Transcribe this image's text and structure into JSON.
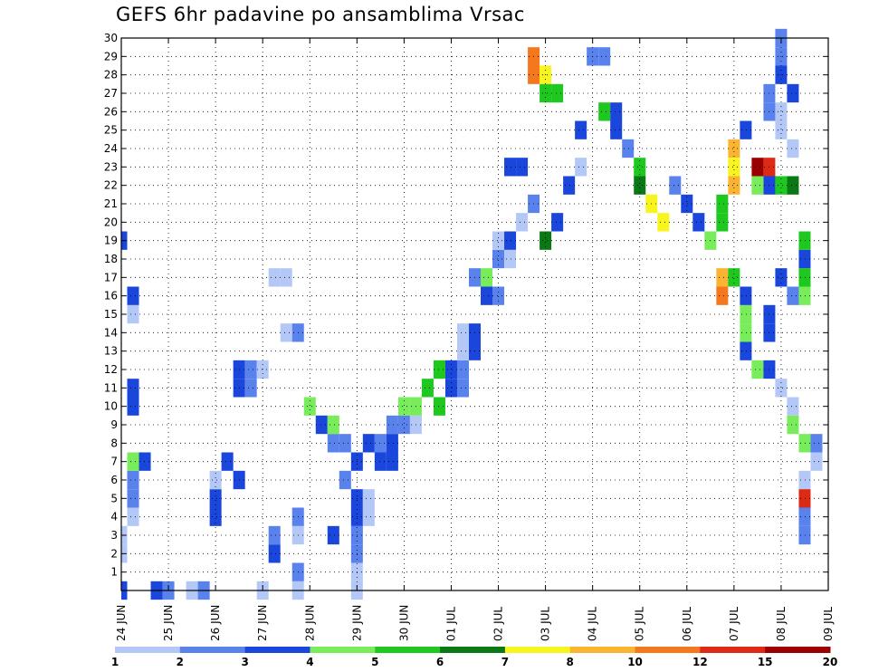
{
  "chart_data": {
    "type": "heatmap",
    "title": "GEFS 6hr padavine po ansamblima Vrsac",
    "xlabel": "",
    "ylabel": "",
    "x_tick_labels": [
      "24 JUN",
      "25 JUN",
      "26 JUN",
      "27 JUN",
      "28 JUN",
      "29 JUN",
      "30 JUN",
      "01 JUL",
      "02 JUL",
      "03 JUL",
      "04 JUL",
      "05 JUL",
      "06 JUL",
      "07 JUL",
      "08 JUL",
      "09 JUL"
    ],
    "y_tick_labels": [
      "1",
      "2",
      "3",
      "4",
      "5",
      "6",
      "7",
      "8",
      "9",
      "10",
      "11",
      "12",
      "13",
      "14",
      "15",
      "16",
      "17",
      "18",
      "19",
      "20",
      "21",
      "22",
      "23",
      "24",
      "25",
      "26",
      "27",
      "28",
      "29",
      "30"
    ],
    "xlim_steps": [
      0,
      60
    ],
    "ylim_members": [
      0,
      30
    ],
    "grid": true,
    "colorbar": {
      "labels": [
        "1",
        "2",
        "3",
        "4",
        "5",
        "6",
        "7",
        "8",
        "10",
        "12",
        "15",
        "20"
      ],
      "colors": [
        "#b4c8f8",
        "#5a82ec",
        "#1a46dc",
        "#78ec5a",
        "#1ec81e",
        "#0a7814",
        "#f8f51e",
        "#fab432",
        "#f5781e",
        "#dc2a14",
        "#9a0000"
      ]
    },
    "cells": [
      [
        0,
        0,
        3
      ],
      [
        2,
        0,
        1
      ],
      [
        3,
        0,
        1
      ],
      [
        2,
        -1,
        6
      ],
      [
        3,
        -1,
        2
      ],
      [
        4,
        -1,
        2
      ],
      [
        19,
        0,
        3
      ],
      [
        4,
        1,
        1
      ],
      [
        5,
        1,
        2
      ],
      [
        6,
        1,
        2
      ],
      [
        7,
        1,
        4
      ],
      [
        7,
        2,
        3
      ],
      [
        10,
        1,
        3
      ],
      [
        11,
        1,
        3
      ],
      [
        15,
        1,
        1
      ],
      [
        16,
        1,
        3
      ],
      [
        0,
        3,
        3
      ],
      [
        0,
        4,
        2
      ],
      [
        0,
        6,
        1
      ],
      [
        0,
        7,
        2
      ],
      [
        4,
        8,
        3
      ],
      [
        5,
        8,
        3
      ],
      [
        6,
        8,
        1
      ],
      [
        7,
        9,
        3
      ],
      [
        6,
        10,
        3
      ],
      [
        11,
        10,
        3
      ],
      [
        12,
        10,
        3
      ],
      [
        11,
        11,
        2
      ],
      [
        12,
        11,
        2
      ],
      [
        12,
        12,
        1
      ],
      [
        17,
        13,
        1
      ],
      [
        17,
        14,
        1
      ],
      [
        0,
        12,
        1
      ],
      [
        2,
        13,
        3
      ],
      [
        3,
        13,
        2
      ],
      [
        0,
        15,
        1
      ],
      [
        1,
        15,
        2
      ],
      [
        3,
        15,
        1
      ],
      [
        4,
        15,
        2
      ],
      [
        3,
        18,
        3
      ],
      [
        6,
        19,
        2
      ],
      [
        7,
        20,
        3
      ],
      [
        8,
        21,
        3
      ],
      [
        8,
        22,
        2
      ],
      [
        9,
        23,
        2
      ],
      [
        9,
        24,
        2
      ],
      [
        9,
        25,
        1
      ],
      [
        14,
        14,
        1
      ],
      [
        14,
        15,
        2
      ],
      [
        10,
        16,
        4
      ],
      [
        9,
        17,
        3
      ],
      [
        8,
        18,
        2
      ],
      [
        8,
        19,
        2
      ],
      [
        9,
        18,
        4
      ],
      [
        0,
        20,
        1
      ],
      [
        1,
        20,
        1
      ],
      [
        2,
        20,
        2
      ],
      [
        3,
        20,
        2
      ],
      [
        4,
        20,
        3
      ],
      [
        5,
        20,
        3
      ],
      [
        4,
        21,
        1
      ],
      [
        5,
        21,
        1
      ],
      [
        7,
        22,
        3
      ],
      [
        7,
        23,
        3
      ],
      [
        8,
        23,
        3
      ],
      [
        10,
        24,
        4
      ],
      [
        10,
        25,
        4
      ],
      [
        11,
        26,
        5
      ],
      [
        10,
        27,
        5
      ],
      [
        12,
        27,
        5
      ],
      [
        12,
        28,
        3
      ],
      [
        11,
        28,
        3
      ],
      [
        12,
        29,
        2
      ],
      [
        11,
        29,
        2
      ],
      [
        13,
        29,
        1
      ],
      [
        14,
        29,
        1
      ],
      [
        13,
        30,
        3
      ],
      [
        14,
        30,
        3
      ],
      [
        17,
        30,
        2
      ],
      [
        17,
        31,
        4
      ],
      [
        16,
        31,
        3
      ],
      [
        16,
        32,
        2
      ],
      [
        18,
        32,
        2
      ],
      [
        19,
        32,
        1
      ],
      [
        18,
        33,
        1
      ],
      [
        19,
        33,
        3
      ],
      [
        23,
        33,
        3
      ],
      [
        23,
        34,
        3
      ],
      [
        28,
        35,
        9
      ],
      [
        29,
        35,
        9
      ],
      [
        28,
        36,
        7
      ],
      [
        27,
        37,
        5
      ],
      [
        27,
        36,
        5
      ],
      [
        20,
        34,
        1
      ],
      [
        21,
        35,
        2
      ],
      [
        19,
        36,
        6
      ],
      [
        20,
        37,
        3
      ],
      [
        22,
        38,
        3
      ],
      [
        23,
        39,
        1
      ],
      [
        25,
        39,
        3
      ],
      [
        29,
        40,
        2
      ],
      [
        29,
        41,
        2
      ],
      [
        26,
        41,
        5
      ],
      [
        26,
        42,
        3
      ],
      [
        25,
        42,
        3
      ],
      [
        24,
        43,
        2
      ],
      [
        23,
        44,
        5
      ],
      [
        22,
        44,
        6
      ],
      [
        21,
        45,
        7
      ],
      [
        20,
        46,
        7
      ],
      [
        22,
        47,
        2
      ],
      [
        21,
        48,
        3
      ],
      [
        20,
        49,
        3
      ],
      [
        19,
        50,
        4
      ],
      [
        17,
        51,
        8
      ],
      [
        16,
        51,
        9
      ],
      [
        17,
        52,
        5
      ],
      [
        15,
        53,
        4
      ],
      [
        14,
        53,
        4
      ],
      [
        13,
        53,
        3
      ],
      [
        16,
        53,
        3
      ],
      [
        14,
        55,
        3
      ],
      [
        15,
        55,
        3
      ],
      [
        12,
        54,
        4
      ],
      [
        12,
        55,
        3
      ],
      [
        11,
        56,
        1
      ],
      [
        10,
        57,
        1
      ],
      [
        9,
        57,
        4
      ],
      [
        8,
        58,
        4
      ],
      [
        8,
        59,
        2
      ],
      [
        7,
        59,
        1
      ],
      [
        6,
        58,
        1
      ],
      [
        5,
        58,
        10
      ],
      [
        4,
        58,
        2
      ],
      [
        3,
        58,
        2
      ],
      [
        16,
        58,
        4
      ],
      [
        17,
        58,
        5
      ],
      [
        18,
        58,
        3
      ],
      [
        19,
        58,
        5
      ],
      [
        16,
        57,
        2
      ],
      [
        17,
        56,
        3
      ],
      [
        22,
        57,
        6
      ],
      [
        22,
        56,
        5
      ],
      [
        22,
        55,
        3
      ],
      [
        22,
        54,
        4
      ],
      [
        23,
        55,
        10
      ],
      [
        23,
        54,
        11
      ],
      [
        25,
        56,
        1
      ],
      [
        24,
        57,
        1
      ],
      [
        26,
        56,
        1
      ],
      [
        26,
        55,
        2
      ],
      [
        27,
        55,
        2
      ],
      [
        27,
        57,
        3
      ],
      [
        28,
        56,
        3
      ],
      [
        29,
        56,
        2
      ],
      [
        30,
        56,
        2
      ],
      [
        25,
        53,
        3
      ],
      [
        24,
        52,
        8
      ],
      [
        23,
        52,
        7
      ],
      [
        22,
        52,
        8
      ],
      [
        21,
        51,
        5
      ],
      [
        20,
        51,
        5
      ]
    ]
  },
  "legend_colors": {
    "axis": "#000000",
    "grid": "#000000",
    "background": "#ffffff"
  }
}
